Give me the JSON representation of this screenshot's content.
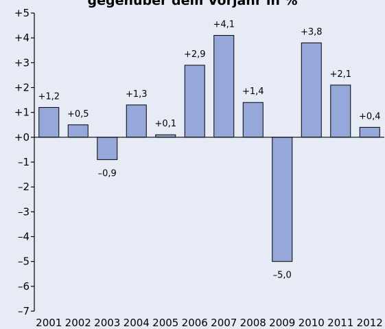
{
  "chart_data": {
    "type": "bar",
    "title": "gegenüber dem Vorjahr in %",
    "categories": [
      "2001",
      "2002",
      "2003",
      "2004",
      "2005",
      "2006",
      "2007",
      "2008",
      "2009",
      "2010",
      "2011",
      "2012"
    ],
    "values": [
      1.2,
      0.5,
      -0.9,
      1.3,
      0.1,
      2.9,
      4.1,
      1.4,
      -5.0,
      3.8,
      2.1,
      0.4
    ],
    "data_labels": [
      "+1,2",
      "+0,5",
      "–0,9",
      "+1,3",
      "+0,1",
      "+2,9",
      "+4,1",
      "+1,4",
      "–5,0",
      "+3,8",
      "+2,1",
      "+0,4"
    ],
    "ylim": [
      -7,
      5
    ],
    "y_ticks": [
      5,
      4,
      3,
      2,
      1,
      0,
      -1,
      -2,
      -3,
      -4,
      -5,
      -6,
      -7
    ],
    "y_tick_labels": [
      "+5",
      "+4",
      "+3",
      "+2",
      "+1",
      "+0",
      "–1",
      "–2",
      "–3",
      "–4",
      "–5",
      "–6",
      "–7"
    ],
    "xlabel": "",
    "ylabel": "",
    "grid": false,
    "legend": "none",
    "colors": {
      "bar": "#95a8d9",
      "bar_stroke": "#000000",
      "background": "#e6ebf5"
    }
  }
}
